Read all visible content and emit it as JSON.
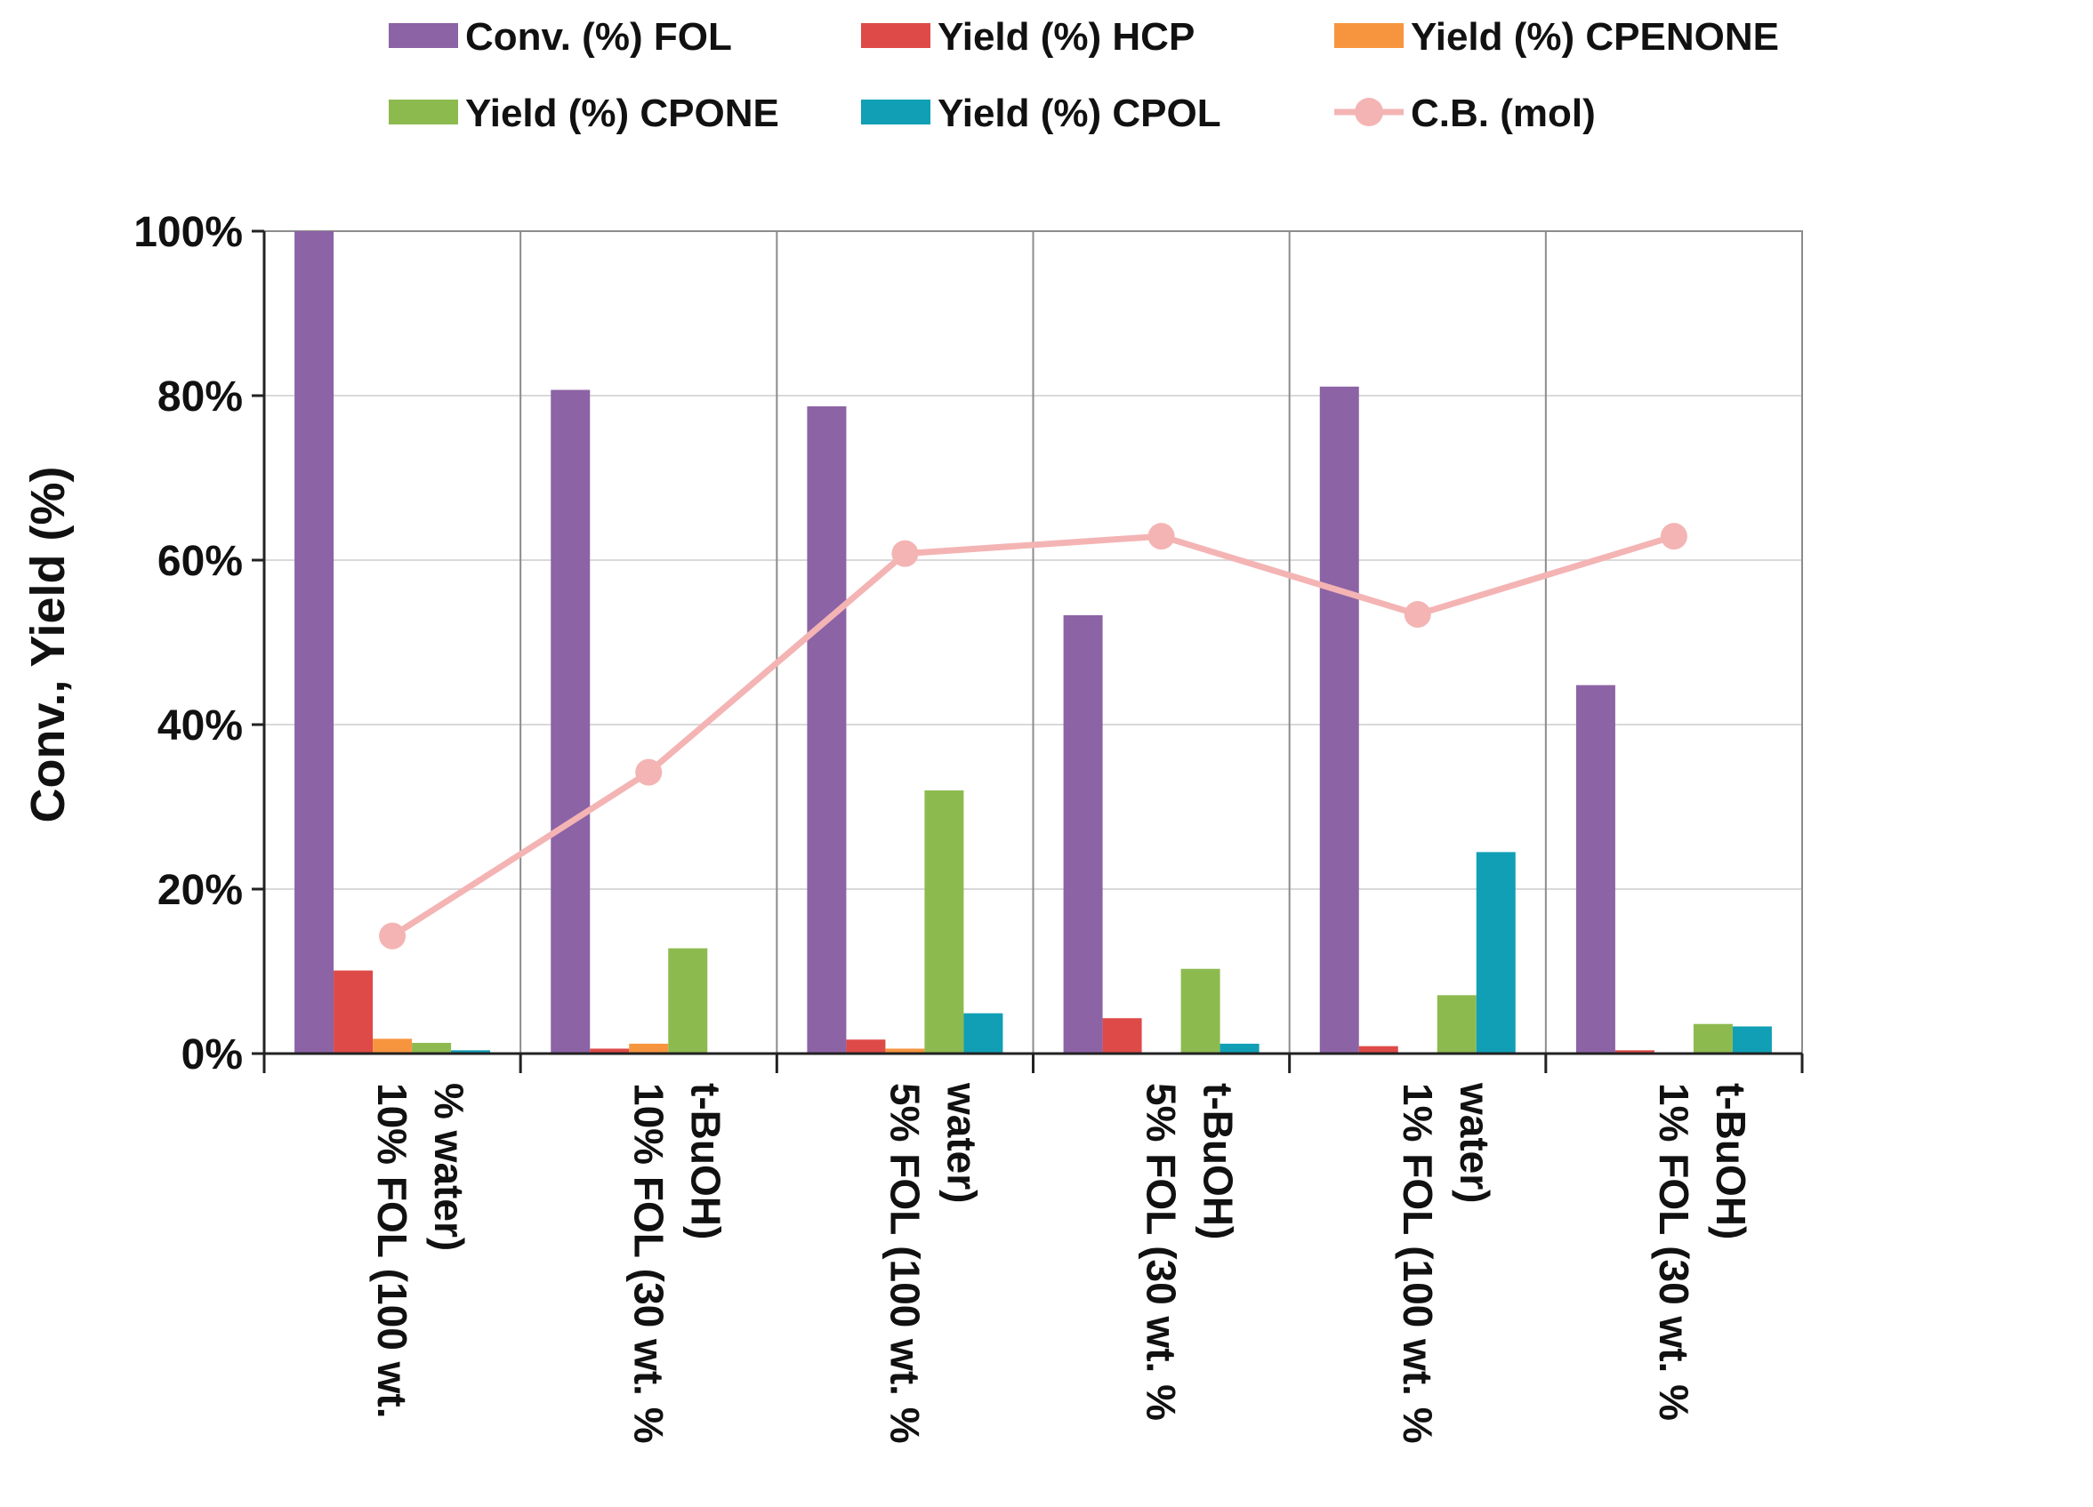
{
  "chart_data": {
    "type": "bar",
    "title": "",
    "xlabel": "",
    "ylabel": "Conv., Yield (%)",
    "ylim": [
      0,
      100
    ],
    "yticks": [
      0,
      20,
      40,
      60,
      80,
      100
    ],
    "ytick_labels": [
      "0%",
      "20%",
      "40%",
      "60%",
      "80%",
      "100%"
    ],
    "grid": true,
    "legend_position": "top",
    "categories": [
      [
        "10% FOL (100 wt.",
        "% water)"
      ],
      [
        "10% FOL (30 wt. %",
        "t-BuOH)"
      ],
      [
        "5% FOL (100 wt. %",
        "water)"
      ],
      [
        "5% FOL (30 wt. %",
        "t-BuOH)"
      ],
      [
        "1% FOL (100 wt. %",
        "water)"
      ],
      [
        "1% FOL (30 wt. %",
        "t-BuOH)"
      ]
    ],
    "series": [
      {
        "name": "Conv. (%) FOL",
        "type": "bar",
        "color": "#8C63A5",
        "values": [
          100,
          80.7,
          78.7,
          53.3,
          81.1,
          44.8
        ]
      },
      {
        "name": "Yield (%) HCP",
        "type": "bar",
        "color": "#DE4A47",
        "values": [
          10.1,
          0.6,
          1.7,
          4.3,
          0.9,
          0.4
        ]
      },
      {
        "name": "Yield (%) CPENONE",
        "type": "bar",
        "color": "#F7953F",
        "values": [
          1.8,
          1.2,
          0.6,
          0,
          0,
          0
        ]
      },
      {
        "name": "Yield (%) CPONE",
        "type": "bar",
        "color": "#8DBA4F",
        "values": [
          1.3,
          12.8,
          32.0,
          10.3,
          7.1,
          3.6
        ]
      },
      {
        "name": "Yield (%) CPOL",
        "type": "bar",
        "color": "#109FB5",
        "values": [
          0.4,
          0,
          4.9,
          1.2,
          24.5,
          3.3
        ]
      },
      {
        "name": "C.B. (mol)",
        "type": "line",
        "color": "#F4B4B4",
        "values": [
          14.3,
          34.2,
          60.8,
          62.9,
          53.4,
          62.9
        ]
      }
    ]
  }
}
